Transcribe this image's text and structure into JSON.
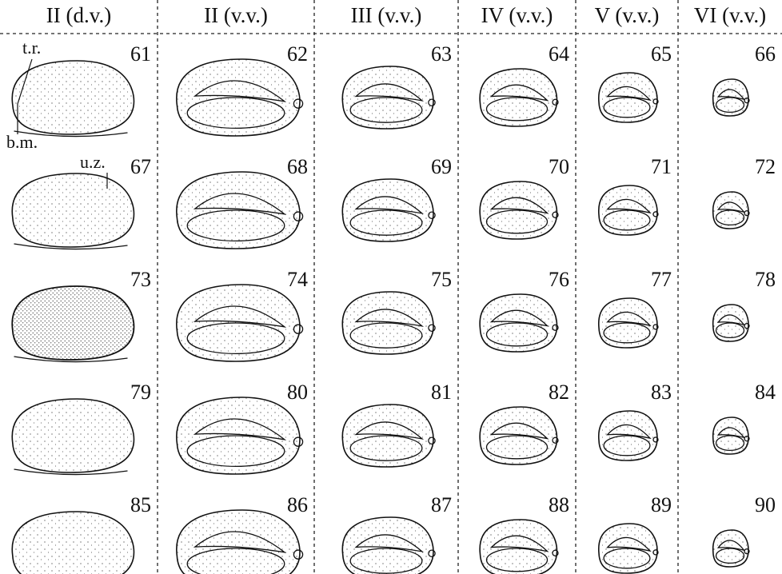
{
  "figure": {
    "columns": [
      "II (d.v.)",
      "II (v.v.)",
      "III (v.v.)",
      "IV (v.v.)",
      "V (v.v.)",
      "VI (v.v.)"
    ],
    "rows": [
      [
        "61",
        "62",
        "63",
        "64",
        "65",
        "66"
      ],
      [
        "67",
        "68",
        "69",
        "70",
        "71",
        "72"
      ],
      [
        "73",
        "74",
        "75",
        "76",
        "77",
        "78"
      ],
      [
        "79",
        "80",
        "81",
        "82",
        "83",
        "84"
      ],
      [
        "85",
        "86",
        "87",
        "88",
        "89",
        "90"
      ]
    ],
    "annotations": {
      "tr": "t.r.",
      "bm": "b.m.",
      "uz": "u.z."
    }
  }
}
